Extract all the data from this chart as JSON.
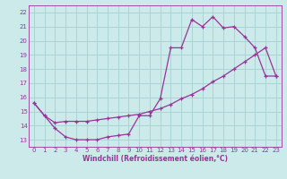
{
  "xlabel": "Windchill (Refroidissement éolien,°C)",
  "xlim": [
    -0.5,
    23.5
  ],
  "ylim": [
    12.5,
    22.5
  ],
  "xticks": [
    0,
    1,
    2,
    3,
    4,
    5,
    6,
    7,
    8,
    9,
    10,
    11,
    12,
    13,
    14,
    15,
    16,
    17,
    18,
    19,
    20,
    21,
    22,
    23
  ],
  "yticks": [
    13,
    14,
    15,
    16,
    17,
    18,
    19,
    20,
    21,
    22
  ],
  "bg_color": "#cdeaea",
  "grid_color": "#aad4d4",
  "line_color": "#993399",
  "line1_x": [
    0,
    1,
    2,
    3,
    4,
    5,
    6,
    7,
    8,
    9,
    10,
    11,
    12,
    13,
    14,
    15,
    16,
    17,
    18,
    19,
    20,
    21,
    22,
    23
  ],
  "line1_y": [
    15.6,
    14.7,
    13.8,
    13.2,
    13.0,
    13.0,
    13.0,
    13.2,
    13.3,
    13.4,
    14.7,
    14.7,
    15.9,
    19.5,
    19.5,
    21.5,
    21.0,
    21.7,
    20.9,
    21.0,
    20.3,
    19.5,
    17.5,
    17.5
  ],
  "line2_x": [
    0,
    1,
    2,
    3,
    4,
    5,
    6,
    7,
    8,
    9,
    10,
    11,
    12,
    13,
    14,
    15,
    16,
    17,
    18,
    19,
    20,
    21,
    22,
    23
  ],
  "line2_y": [
    15.6,
    14.7,
    14.2,
    14.3,
    14.3,
    14.3,
    14.4,
    14.5,
    14.6,
    14.7,
    14.8,
    15.0,
    15.2,
    15.5,
    15.9,
    16.2,
    16.6,
    17.1,
    17.5,
    18.0,
    18.5,
    19.0,
    19.5,
    17.5
  ]
}
